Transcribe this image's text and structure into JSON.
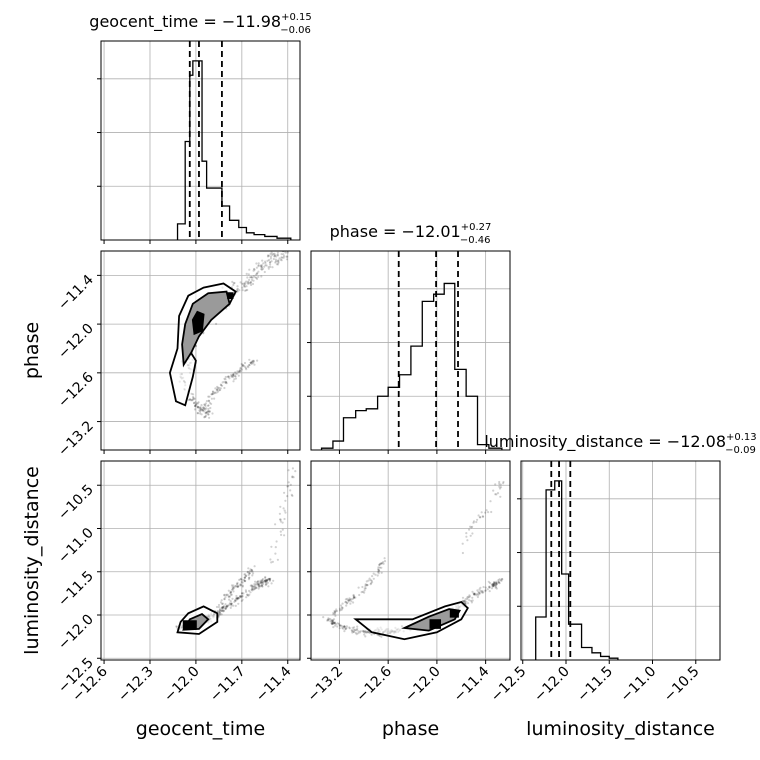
{
  "chart_data": {
    "type": "corner",
    "parameters": [
      "geocent_time",
      "phase",
      "luminosity_distance"
    ],
    "titles": [
      {
        "param": "geocent_time",
        "prefix": "geocent_time = ",
        "value": "−11.98",
        "plus": "+0.15",
        "minus": "−0.06"
      },
      {
        "param": "phase",
        "prefix": "phase = ",
        "value": "−12.01",
        "plus": "+0.27",
        "minus": "−0.46"
      },
      {
        "param": "luminosity_distance",
        "prefix": "luminosity_distance = ",
        "value": "−12.08",
        "plus": "+0.13",
        "minus": "−0.09"
      }
    ],
    "ranges": {
      "geocent_time": [
        -12.62,
        -11.32
      ],
      "phase": [
        -13.55,
        -11.1
      ],
      "luminosity_distance": [
        -12.52,
        -10.22
      ]
    },
    "ticks": {
      "geocent_time": [
        -12.6,
        -12.3,
        -12.0,
        -11.7,
        -11.4
      ],
      "phase": [
        -13.2,
        -12.6,
        -12.0,
        -11.4
      ],
      "luminosity_distance": [
        -12.5,
        -12.0,
        -11.5,
        -11.0,
        -10.5
      ]
    },
    "tick_labels": {
      "geocent_time": [
        "−12.6",
        "−12.3",
        "−12.0",
        "−11.7",
        "−11.4"
      ],
      "phase": [
        "−13.2",
        "−12.6",
        "−12.0",
        "−11.4"
      ],
      "luminosity_distance": [
        "−12.5",
        "−12.0",
        "−11.5",
        "−11.0",
        "−10.5"
      ]
    },
    "quantiles": {
      "geocent_time": [
        -12.04,
        -11.98,
        -11.83
      ],
      "phase": [
        -12.47,
        -12.01,
        -11.74
      ],
      "luminosity_distance": [
        -12.17,
        -12.08,
        -11.95
      ]
    },
    "histograms": {
      "geocent_time": {
        "edges": [
          -12.12,
          -12.07,
          -12.04,
          -12.02,
          -11.99,
          -11.96,
          -11.93,
          -11.88,
          -11.83,
          -11.78,
          -11.72,
          -11.67,
          -11.62,
          -11.55,
          -11.47,
          -11.38
        ],
        "counts": [
          0.09,
          0.55,
          0.92,
          1.0,
          1.0,
          0.44,
          0.29,
          0.29,
          0.19,
          0.11,
          0.07,
          0.04,
          0.03,
          0.02,
          0.01
        ]
      },
      "phase": {
        "edges": [
          -13.42,
          -13.28,
          -13.15,
          -13.0,
          -12.87,
          -12.73,
          -12.6,
          -12.46,
          -12.32,
          -12.18,
          -12.04,
          -11.91,
          -11.78,
          -11.64,
          -11.5,
          -11.36,
          -11.2
        ],
        "counts": [
          0.01,
          0.05,
          0.18,
          0.22,
          0.23,
          0.3,
          0.35,
          0.42,
          0.58,
          0.83,
          0.87,
          0.93,
          0.45,
          0.3,
          0.03,
          0.01
        ]
      },
      "luminosity_distance": {
        "edges": [
          -12.35,
          -12.23,
          -12.18,
          -12.13,
          -12.05,
          -11.97,
          -11.82,
          -11.7,
          -11.6,
          -11.5,
          -11.4
        ],
        "counts": [
          0.24,
          0.95,
          0.95,
          1.0,
          0.48,
          0.2,
          0.07,
          0.04,
          0.02,
          0.01
        ]
      }
    },
    "scatter_tracks": [
      {
        "x": "geocent_time",
        "y": "phase",
        "pts": [
          [
            -12.06,
            -12.55
          ],
          [
            -12.02,
            -12.2
          ],
          [
            -11.98,
            -12.0
          ],
          [
            -11.9,
            -11.85
          ],
          [
            -11.8,
            -11.7
          ],
          [
            -11.7,
            -11.55
          ],
          [
            -11.6,
            -11.35
          ],
          [
            -11.5,
            -11.2
          ],
          [
            -11.4,
            -11.12
          ]
        ],
        "spread": [
          0.05,
          0.12
        ],
        "n": 320
      },
      {
        "x": "geocent_time",
        "y": "phase",
        "pts": [
          [
            -11.95,
            -13.05
          ],
          [
            -11.88,
            -12.85
          ],
          [
            -11.8,
            -12.7
          ],
          [
            -11.7,
            -12.55
          ],
          [
            -11.62,
            -12.45
          ]
        ],
        "spread": [
          0.03,
          0.05
        ],
        "n": 110
      },
      {
        "x": "geocent_time",
        "y": "phase",
        "pts": [
          [
            -12.1,
            -12.6
          ],
          [
            -12.04,
            -12.9
          ],
          [
            -11.98,
            -13.05
          ],
          [
            -11.92,
            -13.1
          ]
        ],
        "spread": [
          0.04,
          0.08
        ],
        "n": 80
      },
      {
        "x": "geocent_time",
        "y": "luminosity_distance",
        "pts": [
          [
            -12.12,
            -12.15
          ],
          [
            -12.0,
            -12.1
          ],
          [
            -11.88,
            -12.0
          ],
          [
            -11.75,
            -11.85
          ],
          [
            -11.62,
            -11.68
          ],
          [
            -11.52,
            -11.58
          ]
        ],
        "spread": [
          0.04,
          0.05
        ],
        "n": 300
      },
      {
        "x": "geocent_time",
        "y": "luminosity_distance",
        "pts": [
          [
            -11.85,
            -11.95
          ],
          [
            -11.78,
            -11.75
          ],
          [
            -11.7,
            -11.6
          ],
          [
            -11.62,
            -11.45
          ]
        ],
        "spread": [
          0.03,
          0.06
        ],
        "n": 90
      },
      {
        "x": "geocent_time",
        "y": "luminosity_distance",
        "pts": [
          [
            -11.5,
            -11.4
          ],
          [
            -11.45,
            -11.0
          ],
          [
            -11.4,
            -10.6
          ],
          [
            -11.35,
            -10.4
          ]
        ],
        "spread": [
          0.04,
          0.25
        ],
        "n": 40
      },
      {
        "x": "phase",
        "y": "luminosity_distance",
        "pts": [
          [
            -13.35,
            -12.05
          ],
          [
            -13.15,
            -12.15
          ],
          [
            -12.9,
            -12.2
          ],
          [
            -12.6,
            -12.2
          ],
          [
            -12.3,
            -12.15
          ],
          [
            -12.0,
            -12.08
          ],
          [
            -11.8,
            -11.95
          ],
          [
            -11.6,
            -11.8
          ],
          [
            -11.4,
            -11.7
          ],
          [
            -11.2,
            -11.6
          ]
        ],
        "spread": [
          0.06,
          0.05
        ],
        "n": 330
      },
      {
        "x": "phase",
        "y": "luminosity_distance",
        "pts": [
          [
            -13.3,
            -12.0
          ],
          [
            -13.1,
            -11.85
          ],
          [
            -12.9,
            -11.7
          ],
          [
            -12.75,
            -11.55
          ],
          [
            -12.65,
            -11.35
          ]
        ],
        "spread": [
          0.04,
          0.05
        ],
        "n": 90
      },
      {
        "x": "phase",
        "y": "luminosity_distance",
        "pts": [
          [
            -11.7,
            -11.2
          ],
          [
            -11.5,
            -10.9
          ],
          [
            -11.3,
            -10.6
          ],
          [
            -11.15,
            -10.4
          ]
        ],
        "spread": [
          0.05,
          0.15
        ],
        "n": 40
      }
    ],
    "contours": [
      {
        "x": "geocent_time",
        "y": "phase",
        "level": "outer",
        "pts": [
          [
            -12.13,
            -12.95
          ],
          [
            -12.07,
            -13.0
          ],
          [
            -12.02,
            -12.65
          ],
          [
            -12.0,
            -12.45
          ],
          [
            -12.05,
            -12.3
          ],
          [
            -11.98,
            -11.95
          ],
          [
            -11.9,
            -11.9
          ],
          [
            -11.78,
            -11.75
          ],
          [
            -11.74,
            -11.6
          ],
          [
            -11.82,
            -11.5
          ],
          [
            -11.95,
            -11.55
          ],
          [
            -12.05,
            -11.65
          ],
          [
            -12.11,
            -11.9
          ],
          [
            -12.12,
            -12.3
          ],
          [
            -12.17,
            -12.6
          ]
        ]
      },
      {
        "x": "geocent_time",
        "y": "phase",
        "level": "inner",
        "pts": [
          [
            -12.08,
            -12.5
          ],
          [
            -12.03,
            -12.35
          ],
          [
            -11.98,
            -12.15
          ],
          [
            -11.9,
            -11.95
          ],
          [
            -11.78,
            -11.75
          ],
          [
            -11.8,
            -11.6
          ],
          [
            -11.92,
            -11.62
          ],
          [
            -12.02,
            -11.75
          ],
          [
            -12.07,
            -12.0
          ],
          [
            -12.09,
            -12.25
          ]
        ]
      },
      {
        "x": "geocent_time",
        "y": "phase",
        "level": "core",
        "pts": [
          [
            -12.01,
            -12.12
          ],
          [
            -11.96,
            -12.08
          ],
          [
            -11.95,
            -11.88
          ],
          [
            -11.99,
            -11.85
          ],
          [
            -12.02,
            -11.95
          ]
        ]
      },
      {
        "x": "geocent_time",
        "y": "phase",
        "level": "core",
        "pts": [
          [
            -11.79,
            -11.68
          ],
          [
            -11.76,
            -11.68
          ],
          [
            -11.76,
            -11.62
          ],
          [
            -11.79,
            -11.62
          ]
        ]
      },
      {
        "x": "geocent_time",
        "y": "luminosity_distance",
        "level": "outer",
        "pts": [
          [
            -12.12,
            -12.2
          ],
          [
            -11.98,
            -12.22
          ],
          [
            -11.86,
            -12.08
          ],
          [
            -11.86,
            -11.98
          ],
          [
            -11.95,
            -11.9
          ],
          [
            -12.05,
            -11.98
          ],
          [
            -12.1,
            -12.08
          ]
        ]
      },
      {
        "x": "geocent_time",
        "y": "luminosity_distance",
        "level": "inner",
        "pts": [
          [
            -12.08,
            -12.17
          ],
          [
            -11.98,
            -12.16
          ],
          [
            -11.92,
            -12.05
          ],
          [
            -11.96,
            -11.99
          ],
          [
            -12.04,
            -12.05
          ]
        ]
      },
      {
        "x": "geocent_time",
        "y": "luminosity_distance",
        "level": "core",
        "pts": [
          [
            -12.08,
            -12.16
          ],
          [
            -12.0,
            -12.16
          ],
          [
            -12.0,
            -12.07
          ],
          [
            -12.08,
            -12.07
          ]
        ]
      },
      {
        "x": "phase",
        "y": "luminosity_distance",
        "level": "outer",
        "pts": [
          [
            -13.0,
            -12.05
          ],
          [
            -12.8,
            -12.2
          ],
          [
            -12.4,
            -12.28
          ],
          [
            -12.0,
            -12.2
          ],
          [
            -11.7,
            -12.05
          ],
          [
            -11.62,
            -11.92
          ],
          [
            -11.7,
            -11.85
          ],
          [
            -11.9,
            -11.9
          ],
          [
            -12.3,
            -12.05
          ],
          [
            -12.8,
            -12.05
          ]
        ]
      },
      {
        "x": "phase",
        "y": "luminosity_distance",
        "level": "inner",
        "pts": [
          [
            -12.4,
            -12.15
          ],
          [
            -12.1,
            -12.18
          ],
          [
            -11.78,
            -12.05
          ],
          [
            -11.72,
            -11.95
          ],
          [
            -11.85,
            -11.93
          ],
          [
            -12.1,
            -12.02
          ]
        ]
      },
      {
        "x": "phase",
        "y": "luminosity_distance",
        "level": "core",
        "pts": [
          [
            -12.08,
            -12.15
          ],
          [
            -11.96,
            -12.15
          ],
          [
            -11.96,
            -12.06
          ],
          [
            -12.08,
            -12.06
          ]
        ]
      },
      {
        "x": "phase",
        "y": "luminosity_distance",
        "level": "core",
        "pts": [
          [
            -11.83,
            -12.02
          ],
          [
            -11.74,
            -12.02
          ],
          [
            -11.74,
            -11.95
          ],
          [
            -11.83,
            -11.95
          ]
        ]
      }
    ],
    "grid": true
  }
}
